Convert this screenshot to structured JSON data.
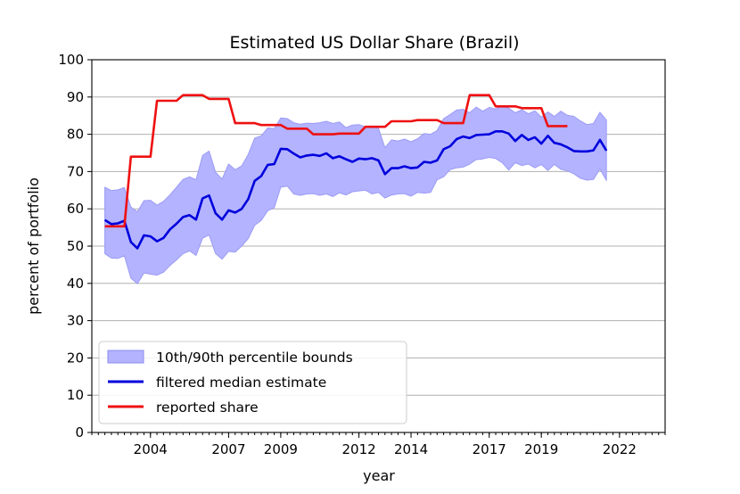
{
  "chart_data": {
    "type": "line",
    "title": "Estimated US Dollar Share (Brazil)",
    "xlabel": "year",
    "ylabel": "percent of portfolio",
    "xlim": [
      2001.75,
      2023.75
    ],
    "ylim": [
      0,
      100
    ],
    "xticks": [
      {
        "value": 2004,
        "label": "2004"
      },
      {
        "value": 2007,
        "label": "2007"
      },
      {
        "value": 2009,
        "label": "2009"
      },
      {
        "value": 2012,
        "label": "2012"
      },
      {
        "value": 2014,
        "label": "2014"
      },
      {
        "value": 2017,
        "label": "2017"
      },
      {
        "value": 2019,
        "label": "2019"
      },
      {
        "value": 2022,
        "label": "2022"
      }
    ],
    "yticks": [
      0,
      10,
      20,
      30,
      40,
      50,
      60,
      70,
      80,
      90,
      100
    ],
    "grid": "horizontal",
    "legend_position": "lower-left",
    "legend": [
      {
        "label": "10th/90th percentile bounds",
        "kind": "band",
        "color": "#b3b3ff"
      },
      {
        "label": "filtered median estimate",
        "kind": "line",
        "color": "#0000dd"
      },
      {
        "label": "reported share",
        "kind": "line",
        "color": "#ee1111"
      }
    ],
    "band": {
      "upper": [
        [
          2002.25,
          65.8
        ],
        [
          2002.5,
          64.9
        ],
        [
          2002.75,
          65.1
        ],
        [
          2003.0,
          65.7
        ],
        [
          2003.25,
          60.5
        ],
        [
          2003.5,
          59.2
        ],
        [
          2003.75,
          62.2
        ],
        [
          2004.0,
          62.3
        ],
        [
          2004.25,
          61.0
        ],
        [
          2004.5,
          62.0
        ],
        [
          2004.75,
          63.8
        ],
        [
          2005.0,
          65.8
        ],
        [
          2005.25,
          67.9
        ],
        [
          2005.5,
          68.6
        ],
        [
          2005.75,
          67.8
        ],
        [
          2006.0,
          74.3
        ],
        [
          2006.25,
          75.5
        ],
        [
          2006.5,
          69.8
        ],
        [
          2006.75,
          68.0
        ],
        [
          2007.0,
          72.0
        ],
        [
          2007.25,
          70.5
        ],
        [
          2007.5,
          71.5
        ],
        [
          2007.75,
          74.6
        ],
        [
          2008.0,
          79.0
        ],
        [
          2008.25,
          79.6
        ],
        [
          2008.5,
          81.7
        ],
        [
          2008.75,
          81.5
        ],
        [
          2009.0,
          84.4
        ],
        [
          2009.25,
          84.2
        ],
        [
          2009.5,
          83.1
        ],
        [
          2009.75,
          82.7
        ],
        [
          2010.0,
          83.0
        ],
        [
          2010.25,
          82.9
        ],
        [
          2010.5,
          83.1
        ],
        [
          2010.75,
          83.5
        ],
        [
          2011.0,
          82.9
        ],
        [
          2011.25,
          83.3
        ],
        [
          2011.5,
          81.8
        ],
        [
          2011.75,
          82.5
        ],
        [
          2012.0,
          82.6
        ],
        [
          2012.25,
          82.0
        ],
        [
          2012.5,
          82.2
        ],
        [
          2012.75,
          81.6
        ],
        [
          2013.0,
          76.4
        ],
        [
          2013.25,
          78.5
        ],
        [
          2013.5,
          78.2
        ],
        [
          2013.75,
          78.7
        ],
        [
          2014.0,
          78.0
        ],
        [
          2014.25,
          78.8
        ],
        [
          2014.5,
          80.2
        ],
        [
          2014.75,
          80.0
        ],
        [
          2015.0,
          81.0
        ],
        [
          2015.25,
          84.2
        ],
        [
          2015.5,
          85.3
        ],
        [
          2015.75,
          86.5
        ],
        [
          2016.0,
          86.7
        ],
        [
          2016.25,
          85.8
        ],
        [
          2016.5,
          87.3
        ],
        [
          2016.75,
          86.2
        ],
        [
          2017.0,
          87.2
        ],
        [
          2017.25,
          86.8
        ],
        [
          2017.5,
          87.6
        ],
        [
          2017.75,
          87.0
        ],
        [
          2018.0,
          85.8
        ],
        [
          2018.25,
          86.6
        ],
        [
          2018.5,
          85.5
        ],
        [
          2018.75,
          86.3
        ],
        [
          2019.0,
          84.6
        ],
        [
          2019.25,
          86.0
        ],
        [
          2019.5,
          84.8
        ],
        [
          2019.75,
          86.2
        ],
        [
          2020.0,
          85.1
        ],
        [
          2020.25,
          84.8
        ],
        [
          2020.5,
          83.6
        ],
        [
          2020.75,
          82.6
        ],
        [
          2021.0,
          82.9
        ],
        [
          2021.25,
          85.9
        ],
        [
          2021.5,
          83.8
        ]
      ],
      "lower": [
        [
          2002.25,
          48.0
        ],
        [
          2002.5,
          46.8
        ],
        [
          2002.75,
          46.7
        ],
        [
          2003.0,
          47.4
        ],
        [
          2003.25,
          41.4
        ],
        [
          2003.5,
          39.9
        ],
        [
          2003.75,
          42.8
        ],
        [
          2004.0,
          42.5
        ],
        [
          2004.25,
          42.2
        ],
        [
          2004.5,
          43.0
        ],
        [
          2004.75,
          44.8
        ],
        [
          2005.0,
          46.3
        ],
        [
          2005.25,
          48.0
        ],
        [
          2005.5,
          48.7
        ],
        [
          2005.75,
          47.5
        ],
        [
          2006.0,
          52.1
        ],
        [
          2006.25,
          53.0
        ],
        [
          2006.5,
          48.0
        ],
        [
          2006.75,
          46.5
        ],
        [
          2007.0,
          48.6
        ],
        [
          2007.25,
          48.4
        ],
        [
          2007.5,
          50.0
        ],
        [
          2007.75,
          52.0
        ],
        [
          2008.0,
          55.6
        ],
        [
          2008.25,
          56.9
        ],
        [
          2008.5,
          59.5
        ],
        [
          2008.75,
          60.3
        ],
        [
          2009.0,
          65.8
        ],
        [
          2009.25,
          66.1
        ],
        [
          2009.5,
          64.0
        ],
        [
          2009.75,
          63.6
        ],
        [
          2010.0,
          64.0
        ],
        [
          2010.25,
          64.1
        ],
        [
          2010.5,
          63.6
        ],
        [
          2010.75,
          64.0
        ],
        [
          2011.0,
          63.3
        ],
        [
          2011.25,
          64.3
        ],
        [
          2011.5,
          63.7
        ],
        [
          2011.75,
          64.6
        ],
        [
          2012.0,
          64.8
        ],
        [
          2012.25,
          65.0
        ],
        [
          2012.5,
          64.0
        ],
        [
          2012.75,
          64.4
        ],
        [
          2013.0,
          62.9
        ],
        [
          2013.25,
          63.7
        ],
        [
          2013.5,
          64.0
        ],
        [
          2013.75,
          64.1
        ],
        [
          2014.0,
          63.4
        ],
        [
          2014.25,
          64.4
        ],
        [
          2014.5,
          64.2
        ],
        [
          2014.75,
          64.4
        ],
        [
          2015.0,
          67.8
        ],
        [
          2015.25,
          68.6
        ],
        [
          2015.5,
          70.5
        ],
        [
          2015.75,
          71.0
        ],
        [
          2016.0,
          71.2
        ],
        [
          2016.25,
          72.0
        ],
        [
          2016.5,
          73.2
        ],
        [
          2016.75,
          73.4
        ],
        [
          2017.0,
          73.8
        ],
        [
          2017.25,
          73.5
        ],
        [
          2017.5,
          72.4
        ],
        [
          2017.75,
          70.4
        ],
        [
          2018.0,
          72.4
        ],
        [
          2018.25,
          71.6
        ],
        [
          2018.5,
          72.0
        ],
        [
          2018.75,
          71.0
        ],
        [
          2019.0,
          71.9
        ],
        [
          2019.25,
          70.3
        ],
        [
          2019.5,
          71.9
        ],
        [
          2019.75,
          70.6
        ],
        [
          2020.0,
          70.2
        ],
        [
          2020.25,
          69.4
        ],
        [
          2020.5,
          68.2
        ],
        [
          2020.75,
          67.7
        ],
        [
          2021.0,
          67.9
        ],
        [
          2021.25,
          70.7
        ],
        [
          2021.5,
          67.6
        ]
      ]
    },
    "series": [
      {
        "name": "filtered median estimate",
        "color": "#0000dd",
        "points": [
          [
            2002.25,
            57.0
          ],
          [
            2002.5,
            55.9
          ],
          [
            2002.75,
            56.1
          ],
          [
            2003.0,
            56.8
          ],
          [
            2003.25,
            51.1
          ],
          [
            2003.5,
            49.4
          ],
          [
            2003.75,
            52.9
          ],
          [
            2004.0,
            52.6
          ],
          [
            2004.25,
            51.3
          ],
          [
            2004.5,
            52.2
          ],
          [
            2004.75,
            54.5
          ],
          [
            2005.0,
            56.0
          ],
          [
            2005.25,
            57.8
          ],
          [
            2005.5,
            58.3
          ],
          [
            2005.75,
            57.1
          ],
          [
            2006.0,
            62.8
          ],
          [
            2006.25,
            63.6
          ],
          [
            2006.5,
            58.8
          ],
          [
            2006.75,
            57.1
          ],
          [
            2007.0,
            59.6
          ],
          [
            2007.25,
            59.0
          ],
          [
            2007.5,
            60.0
          ],
          [
            2007.75,
            62.6
          ],
          [
            2008.0,
            67.5
          ],
          [
            2008.25,
            68.8
          ],
          [
            2008.5,
            71.8
          ],
          [
            2008.75,
            72.0
          ],
          [
            2009.0,
            76.1
          ],
          [
            2009.25,
            76.0
          ],
          [
            2009.5,
            74.8
          ],
          [
            2009.75,
            73.8
          ],
          [
            2010.0,
            74.3
          ],
          [
            2010.25,
            74.5
          ],
          [
            2010.5,
            74.2
          ],
          [
            2010.75,
            74.9
          ],
          [
            2011.0,
            73.6
          ],
          [
            2011.25,
            74.1
          ],
          [
            2011.5,
            73.3
          ],
          [
            2011.75,
            72.6
          ],
          [
            2012.0,
            73.5
          ],
          [
            2012.25,
            73.3
          ],
          [
            2012.5,
            73.6
          ],
          [
            2012.75,
            73.0
          ],
          [
            2013.0,
            69.3
          ],
          [
            2013.25,
            70.9
          ],
          [
            2013.5,
            70.9
          ],
          [
            2013.75,
            71.4
          ],
          [
            2014.0,
            70.9
          ],
          [
            2014.25,
            71.1
          ],
          [
            2014.5,
            72.6
          ],
          [
            2014.75,
            72.4
          ],
          [
            2015.0,
            73.0
          ],
          [
            2015.25,
            76.0
          ],
          [
            2015.5,
            76.8
          ],
          [
            2015.75,
            78.7
          ],
          [
            2016.0,
            79.4
          ],
          [
            2016.25,
            79.0
          ],
          [
            2016.5,
            79.8
          ],
          [
            2016.75,
            79.9
          ],
          [
            2017.0,
            80.0
          ],
          [
            2017.25,
            80.8
          ],
          [
            2017.5,
            80.8
          ],
          [
            2017.75,
            80.2
          ],
          [
            2018.0,
            78.2
          ],
          [
            2018.25,
            79.8
          ],
          [
            2018.5,
            78.5
          ],
          [
            2018.75,
            79.2
          ],
          [
            2019.0,
            77.5
          ],
          [
            2019.25,
            79.6
          ],
          [
            2019.5,
            77.7
          ],
          [
            2019.75,
            77.3
          ],
          [
            2020.0,
            76.5
          ],
          [
            2020.25,
            75.5
          ],
          [
            2020.5,
            75.4
          ],
          [
            2020.75,
            75.4
          ],
          [
            2021.0,
            75.7
          ],
          [
            2021.25,
            78.5
          ],
          [
            2021.5,
            75.6
          ]
        ]
      },
      {
        "name": "reported share",
        "color": "#ee1111",
        "points": [
          [
            2002.25,
            55.3
          ],
          [
            2003.0,
            55.3
          ],
          [
            2003.25,
            74.0
          ],
          [
            2004.0,
            74.0
          ],
          [
            2004.25,
            89.0
          ],
          [
            2005.0,
            89.0
          ],
          [
            2005.25,
            90.5
          ],
          [
            2006.0,
            90.5
          ],
          [
            2006.25,
            89.5
          ],
          [
            2007.0,
            89.5
          ],
          [
            2007.25,
            83.0
          ],
          [
            2008.0,
            83.0
          ],
          [
            2008.25,
            82.5
          ],
          [
            2009.0,
            82.5
          ],
          [
            2009.25,
            81.5
          ],
          [
            2010.0,
            81.5
          ],
          [
            2010.25,
            80.0
          ],
          [
            2011.0,
            80.0
          ],
          [
            2011.25,
            80.2
          ],
          [
            2012.0,
            80.2
          ],
          [
            2012.25,
            82.0
          ],
          [
            2013.0,
            82.0
          ],
          [
            2013.25,
            83.5
          ],
          [
            2014.0,
            83.5
          ],
          [
            2014.25,
            83.8
          ],
          [
            2015.0,
            83.8
          ],
          [
            2015.25,
            83.0
          ],
          [
            2016.0,
            83.0
          ],
          [
            2016.25,
            90.5
          ],
          [
            2017.0,
            90.5
          ],
          [
            2017.25,
            87.5
          ],
          [
            2018.0,
            87.5
          ],
          [
            2018.25,
            87.0
          ],
          [
            2019.0,
            87.0
          ],
          [
            2019.25,
            82.2
          ],
          [
            2020.0,
            82.2
          ]
        ]
      }
    ]
  }
}
